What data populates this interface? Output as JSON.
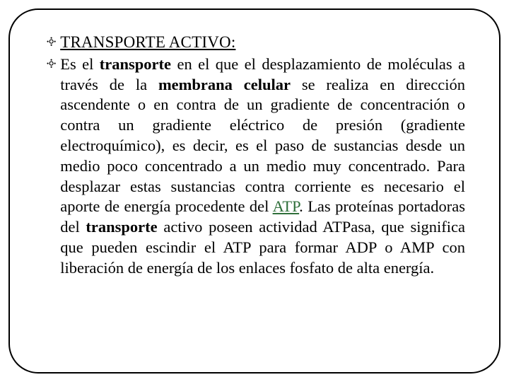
{
  "slide": {
    "bullet_glyph": "༓",
    "heading": "TRANSPORTE ACTIVO:",
    "body": {
      "s1a": "Es el ",
      "s1b_bold": "transporte",
      "s1c": " en el que el desplazamiento de moléculas a través de la ",
      "s1d_bold": "membrana celular",
      "s1e": " se realiza en dirección ascendente o en contra de un gradiente de concentración o contra un gradiente eléctrico de presión (gradiente electroquímico), es decir, es el paso de sustancias desde un medio poco concentrado a un medio muy concentrado. Para desplazar estas sustancias contra corriente es necesario el aporte de energía procedente del ",
      "s1f_atp": "ATP",
      "s1g": ". Las proteínas portadoras del ",
      "s1h_bold": "transporte",
      "s1i": " activo poseen actividad ATPasa, que significa que pueden escindir el ATP para formar ADP o AMP con liberación de energía de los enlaces fosfato de alta energía."
    }
  },
  "colors": {
    "border": "#000000",
    "text": "#000000",
    "atp": "#2f6f3a",
    "background": "#ffffff"
  }
}
